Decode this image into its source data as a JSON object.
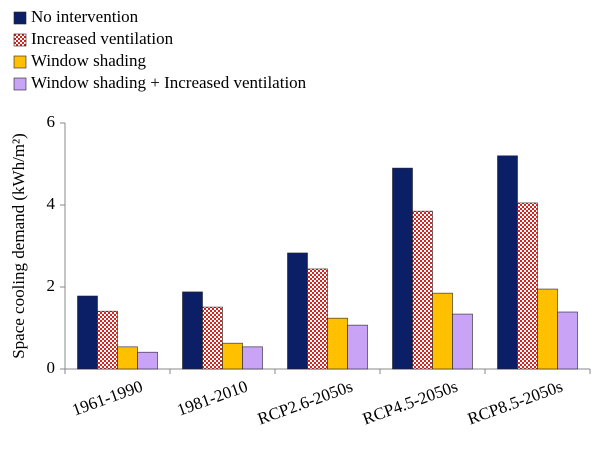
{
  "chart_data": {
    "type": "bar",
    "ylabel": "Space cooling demand (kWh/m²)",
    "categories": [
      "1961-1990",
      "1981-2010",
      "RCP2.6-2050s",
      "RCP4.5-2050s",
      "RCP8.5-2050s"
    ],
    "series": [
      {
        "name": "No intervention",
        "color": "#0b1f66",
        "values": [
          1.78,
          1.88,
          2.83,
          4.9,
          5.2
        ]
      },
      {
        "name": "Increased ventilation",
        "color": "#d9231f",
        "values": [
          1.41,
          1.51,
          2.44,
          3.85,
          4.05
        ]
      },
      {
        "name": "Window shading",
        "color": "#ffc000",
        "values": [
          0.54,
          0.63,
          1.24,
          1.85,
          1.95
        ]
      },
      {
        "name": "Window shading + Increased ventilation",
        "color": "#c9a3f5",
        "values": [
          0.41,
          0.54,
          1.07,
          1.34,
          1.39
        ]
      }
    ],
    "ylim": [
      0,
      6
    ],
    "yticks": [
      0,
      2,
      4,
      6
    ],
    "grid": false,
    "legend": "top-left"
  }
}
